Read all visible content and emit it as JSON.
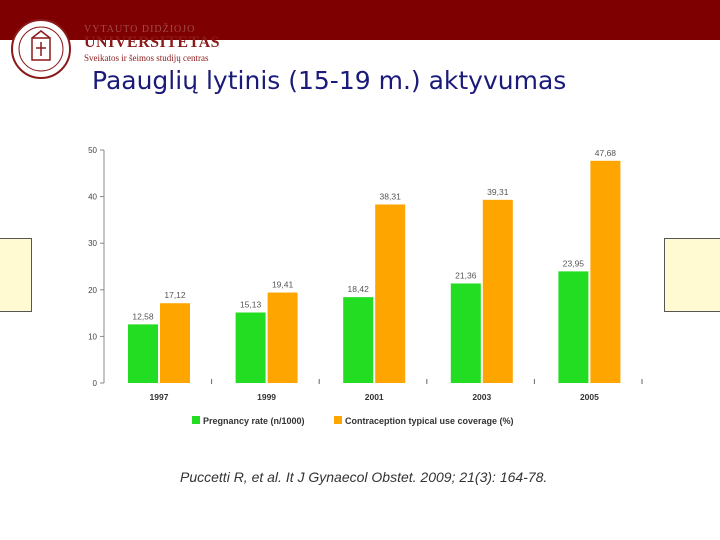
{
  "header": {
    "university_top": "VYTAUTO DIDŽIOJO",
    "university_name": "UNIVERSITETAS",
    "university_subtitle": "Sveikatos ir šeimos studijų centras"
  },
  "slide": {
    "title": "Paauglių lytinis (15-19 m.) aktyvumas",
    "citation": "Puccetti R, et al. It J Gynaecol Obstet. 2009; 21(3): 164-78."
  },
  "colors": {
    "brand": "#7f0000",
    "pregnancy": "#22dd22",
    "contraception": "#ffa500",
    "title": "#1a1a7a"
  },
  "chart_data": {
    "type": "bar",
    "categories": [
      "1997",
      "1999",
      "2001",
      "2003",
      "2005"
    ],
    "series": [
      {
        "name": "Pregnancy rate (n/1000)",
        "values": [
          12.58,
          15.13,
          18.42,
          21.36,
          23.95
        ],
        "labels": [
          "12,58",
          "15,13",
          "18,42",
          "21,36",
          "23,95"
        ],
        "color": "#22dd22"
      },
      {
        "name": "Contraception typical use coverage (%)",
        "values": [
          17.12,
          19.41,
          38.31,
          39.31,
          47.68
        ],
        "labels": [
          "17,12",
          "19,41",
          "38,31",
          "39,31",
          "47,68"
        ],
        "color": "#ffa500"
      }
    ],
    "yticks": [
      "0",
      "10",
      "20",
      "30",
      "40",
      "50"
    ],
    "ylim": [
      0,
      50
    ],
    "legend_position": "bottom",
    "grid": false
  }
}
